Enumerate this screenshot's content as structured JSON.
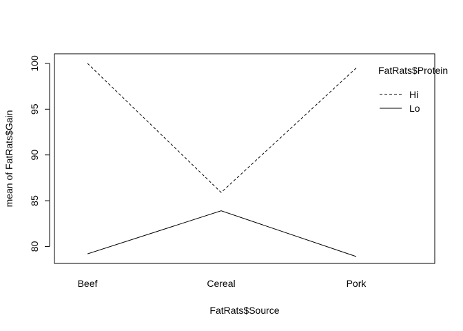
{
  "chart_data": {
    "type": "line",
    "title": "",
    "xlabel": "FatRats$Source",
    "ylabel": "mean of  FatRats$Gain",
    "categories": [
      "Beef",
      "Cereal",
      "Pork"
    ],
    "series": [
      {
        "name": "Hi",
        "values": [
          100.0,
          85.9,
          99.5
        ],
        "style": "dashed"
      },
      {
        "name": "Lo",
        "values": [
          79.2,
          83.9,
          78.9
        ],
        "style": "solid"
      }
    ],
    "yticks": [
      80,
      85,
      90,
      95,
      100
    ],
    "ylim": [
      78.15,
      101.05
    ],
    "legend": {
      "title": "FatRats$Protein",
      "position": "top-right"
    },
    "grid": false,
    "colors": {
      "line": "#000000",
      "background": "#ffffff"
    }
  }
}
